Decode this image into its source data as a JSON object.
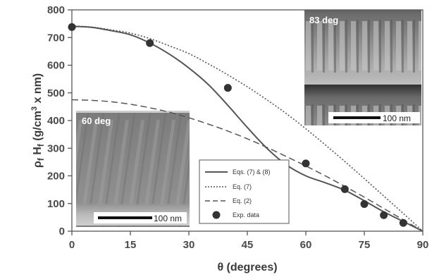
{
  "chart_data": {
    "type": "line",
    "xlabel": "θ (degrees)",
    "ylabel_main": "ρ",
    "ylabel_sub1": "f",
    "ylabel_mid": " H",
    "ylabel_sub2": "f",
    "ylabel_unit": " (g/cm",
    "ylabel_sup": "3",
    "ylabel_end": " x nm)",
    "xlim": [
      0,
      90
    ],
    "ylim": [
      0,
      800
    ],
    "xticks": [
      "0",
      "15",
      "30",
      "45",
      "60",
      "75",
      "90"
    ],
    "yticks": [
      "0",
      "100",
      "200",
      "300",
      "400",
      "500",
      "600",
      "700",
      "800"
    ],
    "legend_position": "lower-center",
    "series": [
      {
        "name": "Eqs. (7) & (8)",
        "style": "solid",
        "x": [
          0,
          5,
          10,
          15,
          20,
          25,
          30,
          35,
          40,
          45,
          50,
          55,
          60,
          65,
          70,
          75,
          80,
          85,
          90
        ],
        "y": [
          740,
          737,
          725,
          710,
          680,
          640,
          590,
          530,
          455,
          375,
          300,
          240,
          200,
          175,
          148,
          110,
          70,
          35,
          0
        ]
      },
      {
        "name": "Eq. (7)",
        "style": "dotted",
        "x": [
          0,
          5,
          10,
          15,
          20,
          25,
          30,
          35,
          40,
          45,
          50,
          55,
          60,
          65,
          70,
          75,
          80,
          85,
          90
        ],
        "y": [
          742,
          738,
          728,
          716,
          696,
          670,
          642,
          605,
          565,
          522,
          475,
          425,
          370,
          312,
          252,
          190,
          127,
          64,
          0
        ]
      },
      {
        "name": "Eq. (2)",
        "style": "dashed",
        "x": [
          0,
          5,
          10,
          15,
          20,
          25,
          30,
          35,
          40,
          45,
          50,
          55,
          60,
          65,
          70,
          75,
          80,
          85,
          90
        ],
        "y": [
          475,
          473,
          468,
          459,
          446,
          430,
          410,
          387,
          362,
          334,
          303,
          270,
          236,
          200,
          162,
          123,
          82,
          41,
          0
        ]
      },
      {
        "name": "Exp. data",
        "style": "points",
        "x": [
          0,
          20,
          40,
          60,
          70,
          75,
          80,
          85
        ],
        "y": [
          738,
          680,
          518,
          245,
          152,
          98,
          58,
          30
        ]
      }
    ],
    "insets": [
      {
        "label": "83 deg",
        "scale": "100 nm"
      },
      {
        "label": "60 deg",
        "scale": "100 nm"
      }
    ]
  },
  "colors": {
    "axis": "#4a4a4a",
    "curve": "#555555",
    "points": "#333333",
    "inset_bg": "#8f8f8f"
  }
}
